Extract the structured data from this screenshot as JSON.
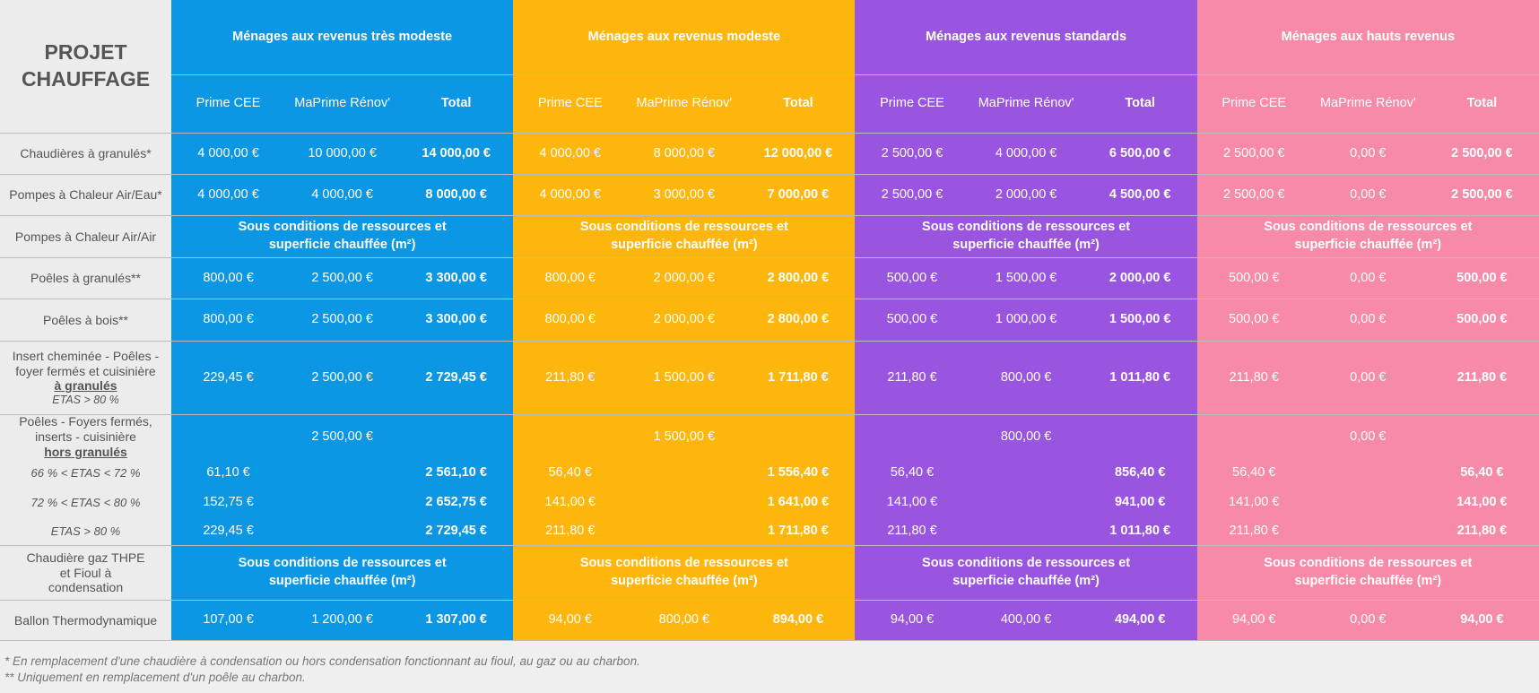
{
  "title": [
    "PROJET",
    "CHAUFFAGE"
  ],
  "groups": [
    "Ménages aux revenus très modeste",
    "Ménages aux revenus modeste",
    "Ménages aux revenus standards",
    "Ménages aux hauts revenus"
  ],
  "subheaders": [
    "Prime CEE",
    "MaPrime Rénov'",
    "Total"
  ],
  "colors": {
    "blue": "#0b97e3",
    "yellow": "#fdb60c",
    "purple": "#9a55e0",
    "pink": "#f78aa8"
  },
  "merged_text": [
    "Sous conditions de ressources et",
    "superficie chauffée (m²)"
  ],
  "rows": [
    {
      "label": "Chaudières à granulés*",
      "values": [
        [
          "4 000,00 €",
          "10 000,00 €",
          "14 000,00 €"
        ],
        [
          "4 000,00 €",
          "8 000,00 €",
          "12 000,00 €"
        ],
        [
          "2 500,00 €",
          "4 000,00 €",
          "6 500,00 €"
        ],
        [
          "2 500,00 €",
          "0,00 €",
          "2 500,00 €"
        ]
      ]
    },
    {
      "label": "Pompes à Chaleur Air/Eau*",
      "values": [
        [
          "4 000,00 €",
          "4 000,00 €",
          "8 000,00 €"
        ],
        [
          "4 000,00 €",
          "3 000,00 €",
          "7 000,00 €"
        ],
        [
          "2 500,00 €",
          "2 000,00 €",
          "4 500,00 €"
        ],
        [
          "2 500,00 €",
          "0,00 €",
          "2 500,00 €"
        ]
      ]
    },
    {
      "label": "Pompes à Chaleur Air/Air",
      "merged": true
    },
    {
      "label": "Poêles à granulés**",
      "values": [
        [
          "800,00 €",
          "2 500,00 €",
          "3 300,00 €"
        ],
        [
          "800,00 €",
          "2 000,00 €",
          "2 800,00 €"
        ],
        [
          "500,00 €",
          "1 500,00 €",
          "2 000,00 €"
        ],
        [
          "500,00 €",
          "0,00 €",
          "500,00 €"
        ]
      ]
    },
    {
      "label": "Poêles à bois**",
      "values": [
        [
          "800,00 €",
          "2 500,00 €",
          "3 300,00 €"
        ],
        [
          "800,00 €",
          "2 000,00 €",
          "2 800,00 €"
        ],
        [
          "500,00 €",
          "1 000,00 €",
          "1 500,00 €"
        ],
        [
          "500,00 €",
          "0,00 €",
          "500,00 €"
        ]
      ]
    },
    {
      "label_lines": [
        "Insert cheminée - Poêles -",
        "foyer fermés et cuisinière"
      ],
      "label_underline": "à granulés",
      "label_italic": "ETAS > 80 %",
      "values": [
        [
          "229,45 €",
          "2 500,00 €",
          "2 729,45 €"
        ],
        [
          "211,80 €",
          "1 500,00 €",
          "1 711,80 €"
        ],
        [
          "211,80 €",
          "800,00 €",
          "1 011,80 €"
        ],
        [
          "211,80 €",
          "0,00 €",
          "211,80 €"
        ]
      ]
    },
    {
      "label_lines": [
        "Poêles - Foyers fermés,",
        "inserts - cuisinière"
      ],
      "label_underline": "hors granulés",
      "maprime": [
        "2 500,00 €",
        "1 500,00 €",
        "800,00 €",
        "0,00 €"
      ]
    },
    {
      "label": "66 % < ETAS < 72 %",
      "values": [
        [
          "61,10 €",
          "",
          "2 561,10 €"
        ],
        [
          "56,40 €",
          "",
          "1 556,40 €"
        ],
        [
          "56,40 €",
          "",
          "856,40 €"
        ],
        [
          "56,40 €",
          "",
          "56,40 €"
        ]
      ]
    },
    {
      "label": "72 % < ETAS < 80 %",
      "values": [
        [
          "152,75 €",
          "",
          "2 652,75 €"
        ],
        [
          "141,00 €",
          "",
          "1 641,00 €"
        ],
        [
          "141,00 €",
          "",
          "941,00 €"
        ],
        [
          "141,00 €",
          "",
          "141,00 €"
        ]
      ]
    },
    {
      "label": "ETAS > 80 %",
      "values": [
        [
          "229,45 €",
          "",
          "2 729,45 €"
        ],
        [
          "211,80 €",
          "",
          "1 711,80 €"
        ],
        [
          "211,80 €",
          "",
          "1 011,80 €"
        ],
        [
          "211,80 €",
          "",
          "211,80 €"
        ]
      ]
    },
    {
      "label_lines": [
        "Chaudière gaz THPE",
        "et Fioul à",
        "condensation"
      ],
      "merged": true
    },
    {
      "label": "Ballon Thermodynamique",
      "values": [
        [
          "107,00 €",
          "1 200,00 €",
          "1 307,00 €"
        ],
        [
          "94,00 €",
          "800,00 €",
          "894,00 €"
        ],
        [
          "94,00 €",
          "400,00 €",
          "494,00 €"
        ],
        [
          "94,00 €",
          "0,00 €",
          "94,00 €"
        ]
      ]
    }
  ],
  "footnotes": [
    "* En remplacement d'une chaudière à condensation ou hors condensation fonctionnant au fioul, au gaz ou au charbon.",
    "** Uniquement en remplacement d'un poêle au charbon."
  ]
}
